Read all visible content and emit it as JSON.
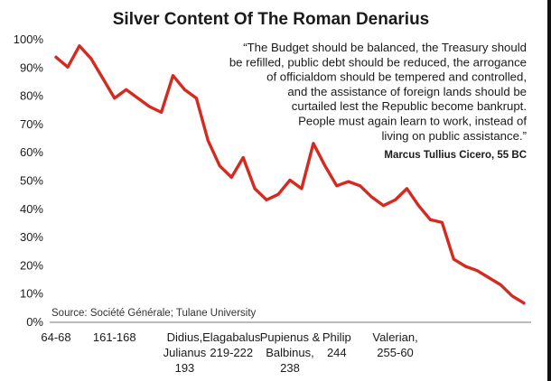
{
  "chart_data": {
    "type": "line",
    "title": "Silver Content Of The Roman Denarius",
    "ylim": [
      0,
      100
    ],
    "yticks": [
      "100%",
      "90%",
      "80%",
      "70%",
      "60%",
      "50%",
      "40%",
      "30%",
      "20%",
      "10%",
      "0%"
    ],
    "ytick_values": [
      100,
      90,
      80,
      70,
      60,
      50,
      40,
      30,
      20,
      10,
      0
    ],
    "x_labels": [
      {
        "lines": [
          "64-68"
        ],
        "index": 0
      },
      {
        "lines": [
          "161-168"
        ],
        "index": 5
      },
      {
        "lines": [
          "Didius,",
          "Julianus",
          "193"
        ],
        "index": 11
      },
      {
        "lines": [
          "Elagabalus",
          "219-222"
        ],
        "index": 15
      },
      {
        "lines": [
          "Pupienus &",
          "Balbinus,",
          "238"
        ],
        "index": 20
      },
      {
        "lines": [
          "Philip",
          "244"
        ],
        "index": 24
      },
      {
        "lines": [
          "Valerian,",
          "255-60"
        ],
        "index": 29
      }
    ],
    "series": [
      {
        "color": "#d42a1f",
        "values": [
          93.5,
          90,
          97.5,
          93,
          86,
          79,
          82,
          79,
          76,
          74,
          87,
          82,
          79,
          64,
          55,
          51,
          58,
          47,
          43,
          45,
          50,
          47,
          63,
          55,
          48,
          49.5,
          48,
          44,
          41,
          43,
          47,
          41,
          36,
          35,
          22,
          19.5,
          18,
          15.5,
          13,
          9,
          6.5
        ]
      }
    ],
    "quote": {
      "lines": [
        "“The Budget should be balanced, the Treasury should",
        "be refilled, public debt should be reduced, the arrogance",
        "of officialdom should be tempered and controlled,",
        "and the assistance of foreign lands should be",
        "curtailed lest the Republic become bankrupt.",
        "People must again learn to work, instead of",
        "living on public assistance.”"
      ],
      "author": "Marcus Tullius Cicero, 55 BC"
    },
    "source": "Source: Société Générale; Tulane University",
    "grid": false,
    "legend": "none"
  }
}
